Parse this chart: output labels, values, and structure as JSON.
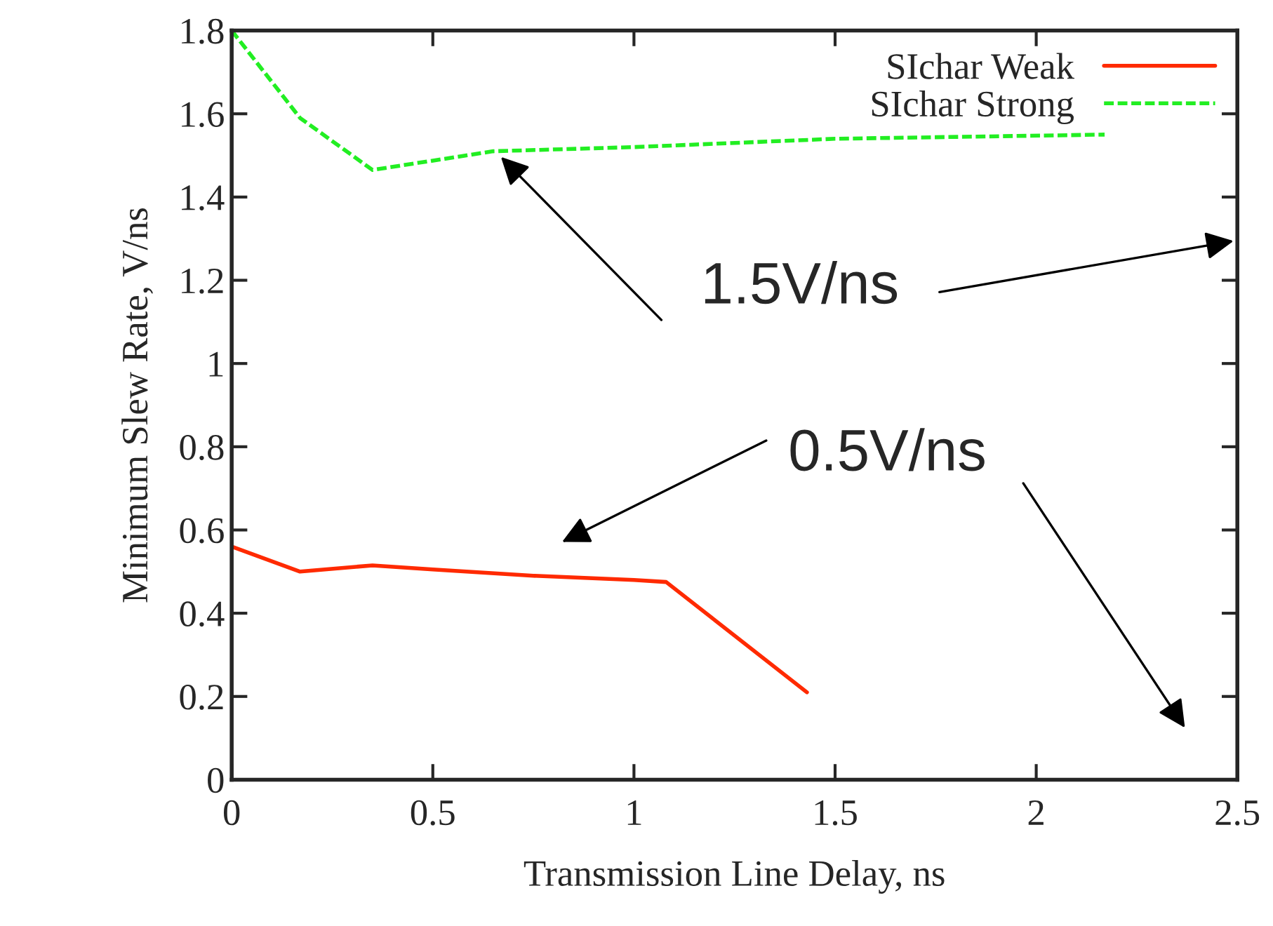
{
  "chart_data": {
    "type": "line",
    "xlabel": "Transmission Line Delay, ns",
    "ylabel": "Minimum Slew Rate, V/ns",
    "xlim": [
      0,
      2.5
    ],
    "xticks": [
      0,
      0.5,
      1,
      1.5,
      2,
      2.5
    ],
    "ylim": [
      0,
      1.8
    ],
    "yticks": [
      0,
      0.2,
      0.4,
      0.6,
      0.8,
      1,
      1.2,
      1.4,
      1.6,
      1.8
    ],
    "grid": false,
    "legend": "top right",
    "series": [
      {
        "name": "SIchar Weak",
        "color": "#ff2a00",
        "line_style": "solid",
        "x": [
          0,
          0.17,
          0.35,
          0.5,
          0.75,
          1.0,
          1.08,
          1.43
        ],
        "values": [
          0.56,
          0.5,
          0.515,
          0.505,
          0.49,
          0.48,
          0.475,
          0.21
        ]
      },
      {
        "name": "SIchar Strong",
        "color": "#22ee22",
        "line_style": "dashed",
        "x": [
          0,
          0.17,
          0.35,
          0.65,
          1.0,
          1.5,
          2.17
        ],
        "values": [
          1.8,
          1.59,
          1.465,
          1.51,
          1.52,
          1.54,
          1.55
        ]
      }
    ],
    "annotations": [
      "1.5V/ns",
      "0.5V/ns"
    ]
  }
}
